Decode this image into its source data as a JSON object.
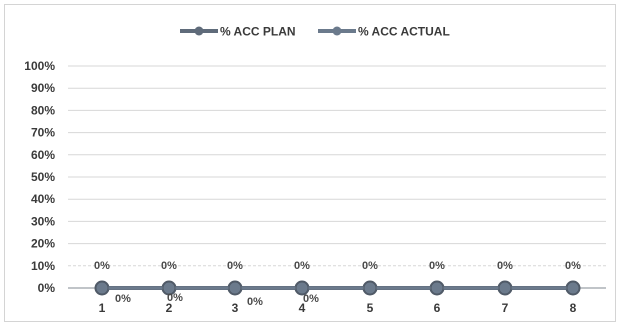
{
  "chart_data": {
    "type": "line",
    "title": "",
    "xlabel": "",
    "ylabel": "",
    "categories": [
      "1",
      "2",
      "3",
      "4",
      "5",
      "6",
      "7",
      "8"
    ],
    "ylim": [
      0,
      100
    ],
    "y_ticks": [
      "0%",
      "10%",
      "20%",
      "30%",
      "40%",
      "50%",
      "60%",
      "70%",
      "80%",
      "90%",
      "100%"
    ],
    "grid": true,
    "legend_position": "top",
    "series": [
      {
        "name": "% ACC PLAN",
        "values": [
          0,
          0,
          0,
          0,
          0,
          0,
          0,
          0
        ],
        "labels": [
          "0%",
          "0%",
          "0%",
          "0%",
          "0%",
          "0%",
          "0%",
          "0%"
        ],
        "color": "#5f6b7a"
      },
      {
        "name": "% ACC ACTUAL",
        "values": [
          0,
          0,
          0,
          0,
          0,
          0,
          0,
          0
        ],
        "labels": [
          "0%",
          "0%",
          "0%",
          "0%"
        ],
        "color": "#6b7a8c"
      }
    ]
  }
}
